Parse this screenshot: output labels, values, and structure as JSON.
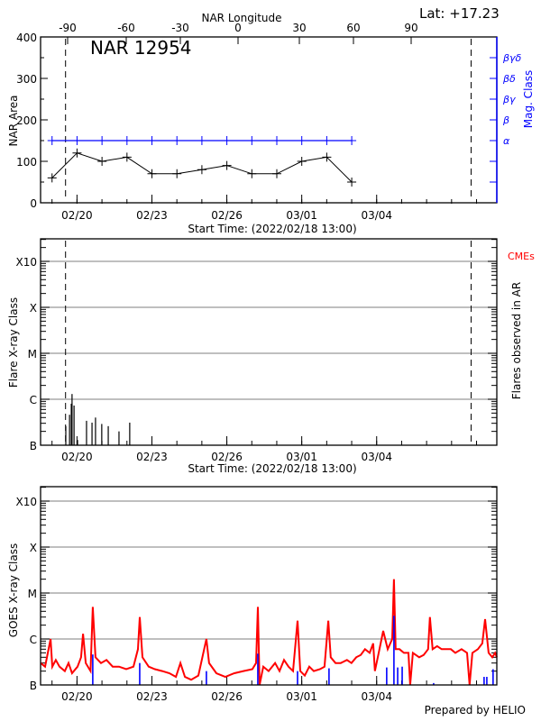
{
  "header": {
    "lat_label": "Lat: +17.23",
    "footer": "Prepared by HELIO"
  },
  "colors": {
    "axis": "#000000",
    "mag": "#0000ff",
    "goes": "#ff0000",
    "goes_events": "#0000ff",
    "cme": "#ff0000",
    "grid": "#999999"
  },
  "chart_data": [
    {
      "type": "line",
      "title": "NAR 12954",
      "xlabel": "Start Time: (2022/02/18 13:00)",
      "ylabel": "NAR Area",
      "y2label": "Mag. Class",
      "top_axis_label": "NAR Longitude",
      "top_axis_ticks": [
        "-90",
        "-60",
        "-30",
        "0",
        "30",
        "60",
        "90"
      ],
      "xtick_labels": [
        "02/20",
        "02/23",
        "02/26",
        "03/01",
        "03/04"
      ],
      "x_unit": "days since 2022/02/18 13:00",
      "xlim": [
        0,
        18.27
      ],
      "ylim": [
        0,
        400
      ],
      "yticks": [
        "0",
        "100",
        "200",
        "300",
        "400"
      ],
      "limb_lines_days": [
        1.0,
        17.24
      ],
      "mag_class_ticks": [
        "α",
        "β",
        "βγ",
        "βδ",
        "βγδ"
      ],
      "series": [
        {
          "name": "NAR Area",
          "x": [
            0.46,
            1.46,
            2.46,
            3.46,
            4.46,
            5.46,
            6.46,
            7.46,
            8.46,
            9.46,
            10.46,
            11.46,
            12.46
          ],
          "values": [
            60,
            120,
            100,
            110,
            70,
            70,
            80,
            90,
            70,
            70,
            100,
            110,
            50
          ]
        },
        {
          "name": "Mag. Class",
          "x": [
            0.46,
            1.46,
            2.46,
            3.46,
            4.46,
            5.46,
            6.46,
            7.46,
            8.46,
            9.46,
            10.46,
            11.46,
            12.46
          ],
          "values": [
            "α",
            "α",
            "α",
            "α",
            "α",
            "α",
            "α",
            "α",
            "α",
            "α",
            "α",
            "α",
            "α"
          ]
        }
      ]
    },
    {
      "type": "bar",
      "xlabel": "Start Time: (2022/02/18 13:00)",
      "ylabel": "Flare X-ray Class",
      "y2label": "Flares observed in AR",
      "legend": "CMEs",
      "xtick_labels": [
        "02/20",
        "02/23",
        "02/26",
        "03/01",
        "03/04"
      ],
      "xlim": [
        0,
        18.27
      ],
      "yscale": "log",
      "ylim_flux": [
        1e-07,
        0.0032
      ],
      "yticks": [
        "B",
        "C",
        "M",
        "X",
        "X10"
      ],
      "limb_lines_days": [
        1.0,
        17.24
      ],
      "flares": {
        "x": [
          1.01,
          1.16,
          1.23,
          1.26,
          1.34,
          1.48,
          1.84,
          2.06,
          2.2,
          2.45,
          2.71,
          3.14,
          3.57
        ],
        "flux": [
          2.6e-07,
          4.6e-07,
          8e-07,
          1.3e-06,
          7.3e-07,
          1.3e-07,
          3.4e-07,
          3.1e-07,
          4e-07,
          2.9e-07,
          2.6e-07,
          2e-07,
          3.1e-07
        ]
      }
    },
    {
      "type": "line",
      "ylabel": "GOES X-ray Class",
      "xtick_labels": [
        "02/20",
        "02/23",
        "02/26",
        "03/01",
        "03/04"
      ],
      "xlim": [
        0,
        18.27
      ],
      "yscale": "log",
      "ylim_flux": [
        1e-07,
        0.0027
      ],
      "yticks": [
        "B",
        "C",
        "M",
        "X",
        "X10"
      ],
      "goes": {
        "x": [
          0.0,
          0.18,
          0.4,
          0.47,
          0.61,
          0.76,
          0.97,
          1.12,
          1.26,
          1.48,
          1.62,
          1.7,
          1.81,
          2.0,
          2.09,
          2.2,
          2.42,
          2.64,
          2.89,
          3.14,
          3.43,
          3.72,
          3.9,
          3.97,
          4.08,
          4.33,
          4.58,
          4.87,
          5.16,
          5.42,
          5.6,
          5.78,
          6.03,
          6.32,
          6.64,
          6.75,
          7.04,
          7.4,
          7.76,
          8.12,
          8.48,
          8.63,
          8.7,
          8.77,
          8.92,
          9.13,
          9.39,
          9.57,
          9.75,
          9.93,
          10.11,
          10.29,
          10.4,
          10.58,
          10.76,
          10.94,
          11.19,
          11.37,
          11.52,
          11.62,
          11.81,
          12.02,
          12.27,
          12.45,
          12.64,
          12.82,
          12.99,
          13.18,
          13.32,
          13.39,
          13.54,
          13.72,
          13.9,
          14.08,
          14.15,
          14.22,
          14.37,
          14.55,
          14.73,
          14.8,
          14.91,
          15.16,
          15.34,
          15.52,
          15.59,
          15.7,
          15.88,
          16.06,
          16.25,
          16.43,
          16.61,
          16.86,
          17.08,
          17.18,
          17.29,
          17.51,
          17.69,
          17.8,
          17.94,
          18.09,
          18.2,
          18.27
        ],
        "flux": [
          3e-07,
          2.5e-07,
          1e-06,
          2.5e-07,
          3.5e-07,
          2.5e-07,
          2e-07,
          3e-07,
          1.8e-07,
          2.5e-07,
          4e-07,
          1.3e-06,
          3e-07,
          2e-07,
          5e-06,
          4e-07,
          3e-07,
          3.5e-07,
          2.5e-07,
          2.5e-07,
          2.2e-07,
          2.5e-07,
          6e-07,
          3e-06,
          4e-07,
          2.5e-07,
          2.2e-07,
          2e-07,
          1.8e-07,
          1.5e-07,
          3e-07,
          1.5e-07,
          1.3e-07,
          1.6e-07,
          1e-06,
          3e-07,
          1.8e-07,
          1.5e-07,
          1.8e-07,
          2e-07,
          2.2e-07,
          3e-07,
          5e-06,
          1e-07,
          2.5e-07,
          2e-07,
          3e-07,
          2e-07,
          3.5e-07,
          2.5e-07,
          2e-07,
          2.5e-06,
          2e-07,
          1.6e-07,
          2.5e-07,
          2e-07,
          2.2e-07,
          2.5e-07,
          2.5e-06,
          4e-07,
          3e-07,
          3e-07,
          3.5e-07,
          3e-07,
          4e-07,
          4.5e-07,
          6e-07,
          5e-07,
          8e-07,
          2e-07,
          5e-07,
          1.5e-06,
          6e-07,
          1e-06,
          2e-05,
          6e-07,
          6e-07,
          5e-07,
          5e-07,
          1e-07,
          5e-07,
          4e-07,
          4.5e-07,
          6e-07,
          3e-06,
          6e-07,
          7e-07,
          6e-07,
          6e-07,
          6e-07,
          5e-07,
          6e-07,
          5e-07,
          1e-07,
          5e-07,
          6e-07,
          8e-07,
          2.7e-06,
          5e-07,
          4e-07,
          5e-07,
          4e-07
        ]
      },
      "events": {
        "x": [
          2.09,
          3.97,
          6.64,
          8.7,
          10.29,
          11.55,
          13.86,
          14.15,
          14.3,
          14.48,
          15.74,
          17.76,
          17.87,
          18.12
        ],
        "flux": [
          4.6e-07,
          3e-07,
          2e-07,
          4.8e-07,
          2e-07,
          2.3e-07,
          2.4e-07,
          3.2e-06,
          2.4e-07,
          2.5e-07,
          1.1e-07,
          1.5e-07,
          1.5e-07,
          2.2e-07
        ]
      }
    }
  ]
}
